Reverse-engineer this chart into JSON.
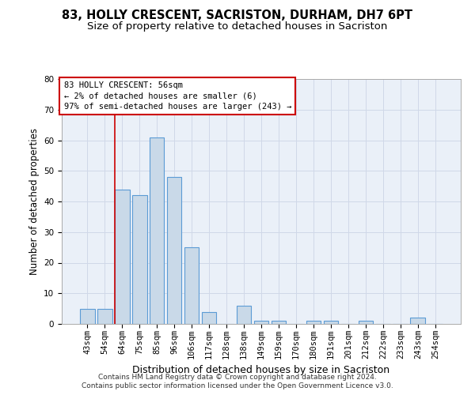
{
  "title_line1": "83, HOLLY CRESCENT, SACRISTON, DURHAM, DH7 6PT",
  "title_line2": "Size of property relative to detached houses in Sacriston",
  "xlabel": "Distribution of detached houses by size in Sacriston",
  "ylabel": "Number of detached properties",
  "categories": [
    "43sqm",
    "54sqm",
    "64sqm",
    "75sqm",
    "85sqm",
    "96sqm",
    "106sqm",
    "117sqm",
    "128sqm",
    "138sqm",
    "149sqm",
    "159sqm",
    "170sqm",
    "180sqm",
    "191sqm",
    "201sqm",
    "212sqm",
    "222sqm",
    "233sqm",
    "243sqm",
    "254sqm"
  ],
  "values": [
    5,
    5,
    44,
    42,
    61,
    48,
    25,
    4,
    0,
    6,
    1,
    1,
    0,
    1,
    1,
    0,
    1,
    0,
    0,
    2,
    0
  ],
  "bar_color": "#c9d9e8",
  "bar_edge_color": "#5b9bd5",
  "bar_edge_width": 0.8,
  "ylim": [
    0,
    80
  ],
  "yticks": [
    0,
    10,
    20,
    30,
    40,
    50,
    60,
    70,
    80
  ],
  "grid_color": "#d0d8e8",
  "background_color": "#eaf0f8",
  "annotation_text": "83 HOLLY CRESCENT: 56sqm\n← 2% of detached houses are smaller (6)\n97% of semi-detached houses are larger (243) →",
  "annotation_box_color": "#ffffff",
  "annotation_border_color": "#cc0000",
  "footer_line1": "Contains HM Land Registry data © Crown copyright and database right 2024.",
  "footer_line2": "Contains public sector information licensed under the Open Government Licence v3.0.",
  "title_fontsize": 10.5,
  "subtitle_fontsize": 9.5,
  "xlabel_fontsize": 9,
  "ylabel_fontsize": 8.5,
  "tick_fontsize": 7.5,
  "annotation_fontsize": 7.5,
  "footer_fontsize": 6.5,
  "red_line_color": "#cc0000",
  "property_line_idx": 1.575
}
